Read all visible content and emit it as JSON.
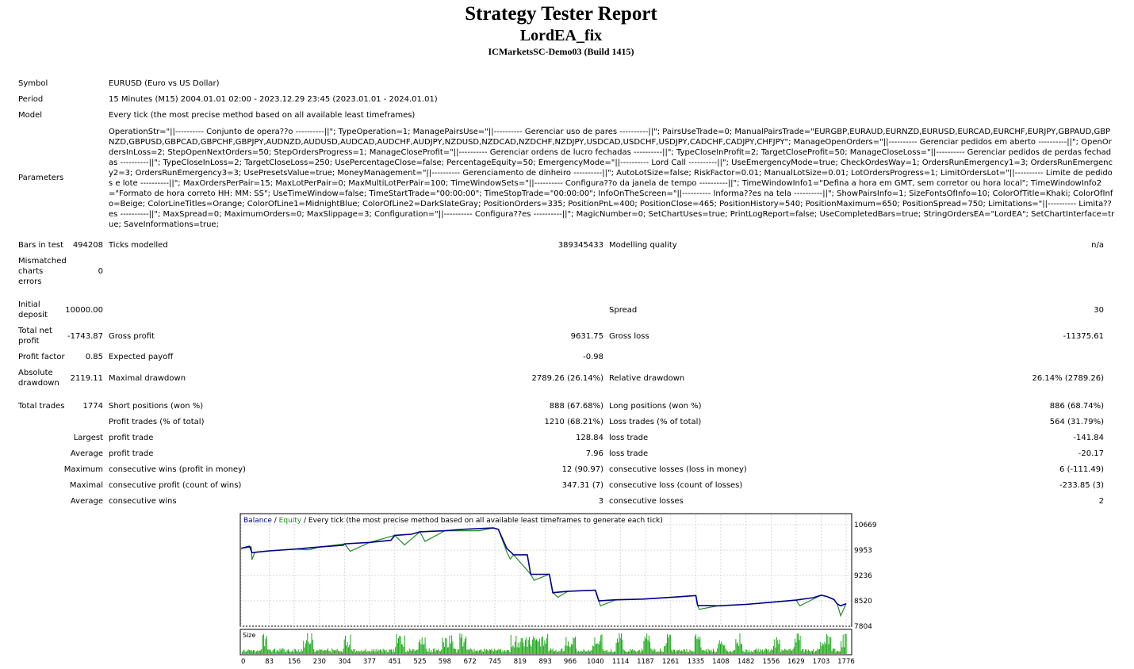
{
  "header": {
    "title": "Strategy Tester Report",
    "ea_name": "LordEA_fix",
    "server": "ICMarketsSC-Demo03 (Build 1415)"
  },
  "info": {
    "symbol_label": "Symbol",
    "symbol_value": "EURUSD (Euro vs US Dollar)",
    "period_label": "Period",
    "period_value": "15 Minutes (M15) 2004.01.01 02:00 - 2023.12.29 23:45 (2023.01.01 - 2024.01.01)",
    "model_label": "Model",
    "model_value": "Every tick (the most precise method based on all available least timeframes)",
    "parameters_label": "Parameters",
    "parameters_value": "OperationStr=\"||---------- Conjunto de opera??o ----------||\"; TypeOperation=1; ManagePairsUse=\"||---------- Gerenciar uso de pares ----------||\"; PairsUseTrade=0; ManualPairsTrade=\"EURGBP,EURAUD,EURNZD,EURUSD,EURCAD,EURCHF,EURJPY,GBPAUD,GBPNZD,GBPUSD,GBPCAD,GBPCHF,GBPJPY,AUDNZD,AUDUSD,AUDCAD,AUDCHF,AUDJPY,NZDUSD,NZDCAD,NZDCHF,NZDJPY,USDCAD,USDCHF,USDJPY,CADCHF,CADJPY,CHFJPY\"; ManageOpenOrders=\"||---------- Gerenciar pedidos em aberto ----------||\"; OpenOrdersInLoss=2; StepOpenNextOrders=50; StepOrdersProgress=1; ManageCloseProfit=\"||---------- Gerenciar ordens de lucro fechadas ----------||\"; TypeCloseInProfit=2; TargetCloseProfit=50; ManageCloseLoss=\"||---------- Gerenciar pedidos de perdas fechadas ----------||\"; TypeCloseInLoss=2; TargetCloseLoss=250; UsePercentageClose=false; PercentageEquity=50; EmergencyMode=\"||---------- Lord Call ----------||\"; UseEmergencyMode=true; CheckOrdesWay=1; OrdersRunEmergency1=3; OrdersRunEmergency2=3; OrdersRunEmergency3=3; UsePresetsValue=true; MoneyManagement=\"||---------- Gerenciamento de dinheiro ----------||\"; AutoLotSize=false; RiskFactor=0.01; ManualLotSize=0.01; LotOrdersProgress=1; LimitOrdersLot=\"||---------- Limite de pedidos e lote ----------||\"; MaxOrdersPerPair=15; MaxLotPerPair=0; MaxMultiLotPerPair=100; TimeWindowSets=\"||---------- Configura??o da janela de tempo ----------||\"; TimeWindowInfo1=\"Defina a hora em GMT, sem corretor ou hora local\"; TimeWindowInfo2=\"Formato de hora correto HH: MM: SS\"; UseTimeWindow=false; TimeStartTrade=\"00:00:00\"; TimeStopTrade=\"00:00:00\"; InfoOnTheScreen=\"||---------- Informa??es na tela ----------||\"; ShowPairsInfo=1; SizeFontsOfInfo=10; ColorOfTitle=Khaki; ColorOfInfo=Beige; ColorLineTitles=Orange; ColorOfLine1=MidnightBlue; ColorOfLine2=DarkSlateGray; PositionOrders=335; PositionPnL=400; PositionClose=465; PositionHistory=540; PositionMaximum=650; PositionSpread=750; Limitations=\"||---------- Limita??es ----------||\"; MaxSpread=0; MaximumOrders=0; MaxSlippage=3; Configuration=\"||---------- Configura??es ----------||\"; MagicNumber=0; SetChartUses=true; PrintLogReport=false; UseCompletedBars=true; StringOrdersEA=\"LordEA\"; SetChartInterface=true; SaveInformations=true;"
  },
  "stats": {
    "bars_label": "Bars in test",
    "bars_value": "494208",
    "ticks_label": "Ticks modelled",
    "ticks_value": "389345433",
    "quality_label": "Modelling quality",
    "quality_value": "n/a",
    "mismatch_label_1": "Mismatched",
    "mismatch_label_2": "charts",
    "mismatch_label_3": "errors",
    "mismatch_value": "0",
    "deposit_label_1": "Initial",
    "deposit_label_2": "deposit",
    "deposit_value": "10000.00",
    "spread_label": "Spread",
    "spread_value": "30",
    "netprofit_label_1": "Total net",
    "netprofit_label_2": "profit",
    "netprofit_value": "-1743.87",
    "grossprofit_label": "Gross profit",
    "grossprofit_value": "9631.75",
    "grossloss_label": "Gross loss",
    "grossloss_value": "-11375.61",
    "pf_label": "Profit factor",
    "pf_value": "0.85",
    "ep_label": "Expected payoff",
    "ep_value": "-0.98",
    "absdd_label_1": "Absolute",
    "absdd_label_2": "drawdown",
    "absdd_value": "2119.11",
    "maxdd_label": "Maximal drawdown",
    "maxdd_value": "2789.26 (26.14%)",
    "reldd_label": "Relative drawdown",
    "reldd_value": "26.14% (2789.26)",
    "trades_label": "Total trades",
    "trades_value": "1774",
    "short_label": "Short positions (won %)",
    "short_value": "888 (67.68%)",
    "long_label": "Long positions (won %)",
    "long_value": "886 (68.74%)",
    "pt_label": "Profit trades (% of total)",
    "pt_value": "1210 (68.21%)",
    "lt_label": "Loss trades (% of total)",
    "lt_value": "564 (31.79%)",
    "largest_label": "Largest",
    "largest_profit_label": "profit trade",
    "largest_profit_value": "128.84",
    "largest_loss_label": "loss trade",
    "largest_loss_value": "-141.84",
    "average_label": "Average",
    "average_profit_label": "profit trade",
    "average_profit_value": "7.96",
    "average_loss_label": "loss trade",
    "average_loss_value": "-20.17",
    "maximum_label": "Maximum",
    "max_cw_label": "consecutive wins (profit in money)",
    "max_cw_value": "12 (90.97)",
    "max_cl_label": "consecutive losses (loss in money)",
    "max_cl_value": "6 (-111.49)",
    "maximal_label": "Maximal",
    "mx_cp_label": "consecutive profit (count of wins)",
    "mx_cp_value": "347.31 (7)",
    "mx_cl_label": "consecutive loss (count of losses)",
    "mx_cl_value": "-233.85 (3)",
    "avg2_label": "Average",
    "avg_cw_label": "consecutive wins",
    "avg_cw_value": "3",
    "avg_cl_label": "consecutive losses",
    "avg_cl_value": "2"
  },
  "chart_data": {
    "type": "line",
    "legend_balance": "Balance",
    "legend_sep1": " / ",
    "legend_equity": "Equity",
    "legend_rest": " / Every tick (the most precise method based on all available least timeframes to generate each tick)",
    "size_label": "Size",
    "y_ticks": [
      10669,
      9953,
      9236,
      8520,
      7804
    ],
    "x_ticks": [
      0,
      83,
      156,
      230,
      304,
      377,
      451,
      525,
      598,
      672,
      745,
      819,
      893,
      966,
      1040,
      1114,
      1187,
      1261,
      1335,
      1408,
      1482,
      1556,
      1629,
      1703,
      1776
    ],
    "ylim": [
      7804,
      10669
    ],
    "xlim": [
      0,
      1790
    ],
    "colors": {
      "balance": "#00008B",
      "equity": "#228B22",
      "size": "#1BA81B",
      "legend_balance": "#00008B",
      "legend_equity": "#228B22"
    },
    "series": [
      {
        "name": "Balance",
        "points": [
          [
            0,
            10000
          ],
          [
            15,
            10040
          ],
          [
            25,
            10060
          ],
          [
            32,
            9880
          ],
          [
            40,
            9890
          ],
          [
            83,
            9930
          ],
          [
            156,
            9980
          ],
          [
            230,
            10040
          ],
          [
            300,
            10090
          ],
          [
            304,
            10130
          ],
          [
            377,
            10170
          ],
          [
            440,
            10230
          ],
          [
            451,
            10370
          ],
          [
            500,
            10400
          ],
          [
            525,
            10470
          ],
          [
            598,
            10500
          ],
          [
            650,
            10540
          ],
          [
            740,
            10580
          ],
          [
            755,
            10540
          ],
          [
            780,
            10000
          ],
          [
            800,
            9820
          ],
          [
            840,
            9820
          ],
          [
            850,
            9270
          ],
          [
            905,
            9270
          ],
          [
            915,
            8750
          ],
          [
            960,
            8790
          ],
          [
            1040,
            8820
          ],
          [
            1050,
            8520
          ],
          [
            1100,
            8550
          ],
          [
            1180,
            8570
          ],
          [
            1280,
            8630
          ],
          [
            1335,
            8670
          ],
          [
            1340,
            8390
          ],
          [
            1400,
            8380
          ],
          [
            1482,
            8420
          ],
          [
            1556,
            8480
          ],
          [
            1629,
            8540
          ],
          [
            1680,
            8610
          ],
          [
            1703,
            8680
          ],
          [
            1720,
            8640
          ],
          [
            1740,
            8560
          ],
          [
            1750,
            8430
          ],
          [
            1760,
            8380
          ],
          [
            1776,
            8440
          ]
        ]
      },
      {
        "name": "Equity",
        "points": [
          [
            0,
            10000
          ],
          [
            30,
            10040
          ],
          [
            32,
            9680
          ],
          [
            40,
            9890
          ],
          [
            83,
            9930
          ],
          [
            156,
            9980
          ],
          [
            200,
            9960
          ],
          [
            230,
            10040
          ],
          [
            304,
            10130
          ],
          [
            320,
            9920
          ],
          [
            377,
            10170
          ],
          [
            451,
            10370
          ],
          [
            480,
            10100
          ],
          [
            525,
            10470
          ],
          [
            540,
            10200
          ],
          [
            598,
            10500
          ],
          [
            700,
            10500
          ],
          [
            740,
            10580
          ],
          [
            755,
            10540
          ],
          [
            780,
            9900
          ],
          [
            790,
            9700
          ],
          [
            800,
            9820
          ],
          [
            850,
            9270
          ],
          [
            860,
            9100
          ],
          [
            905,
            9270
          ],
          [
            915,
            8750
          ],
          [
            930,
            8620
          ],
          [
            960,
            8790
          ],
          [
            1040,
            8820
          ],
          [
            1050,
            8520
          ],
          [
            1055,
            8380
          ],
          [
            1100,
            8550
          ],
          [
            1180,
            8570
          ],
          [
            1335,
            8670
          ],
          [
            1340,
            8390
          ],
          [
            1345,
            8280
          ],
          [
            1400,
            8380
          ],
          [
            1482,
            8420
          ],
          [
            1556,
            8480
          ],
          [
            1629,
            8540
          ],
          [
            1640,
            8380
          ],
          [
            1703,
            8680
          ],
          [
            1720,
            8640
          ],
          [
            1740,
            8560
          ],
          [
            1750,
            8430
          ],
          [
            1760,
            8100
          ],
          [
            1776,
            8440
          ]
        ]
      }
    ]
  }
}
